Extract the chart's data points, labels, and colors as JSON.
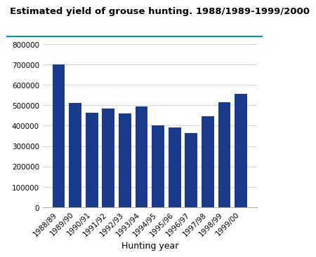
{
  "title": "Estimated yield of grouse hunting. 1988/1989-1999/2000",
  "categories": [
    "1988/89",
    "1989/90",
    "1990/91",
    "1991/92",
    "1992/93",
    "1993/94",
    "1994/95",
    "1995/96",
    "1996/97",
    "1997/98",
    "1998/99",
    "1999/00"
  ],
  "values": [
    700000,
    510000,
    463000,
    485000,
    460000,
    495000,
    401000,
    392000,
    362000,
    446000,
    516000,
    555000
  ],
  "bar_color": "#1a3a8c",
  "xlabel": "Hunting year",
  "ylim": [
    0,
    800000
  ],
  "yticks": [
    0,
    100000,
    200000,
    300000,
    400000,
    500000,
    600000,
    700000,
    800000
  ],
  "ytick_labels": [
    "0",
    "100000",
    "200000",
    "300000",
    "400000",
    "500000",
    "600000",
    "700000",
    "800000"
  ],
  "background_color": "#ffffff",
  "grid_color": "#cccccc",
  "title_fontsize": 9.5,
  "xlabel_fontsize": 9,
  "tick_fontsize": 7.5,
  "teal_line_color": "#009999"
}
